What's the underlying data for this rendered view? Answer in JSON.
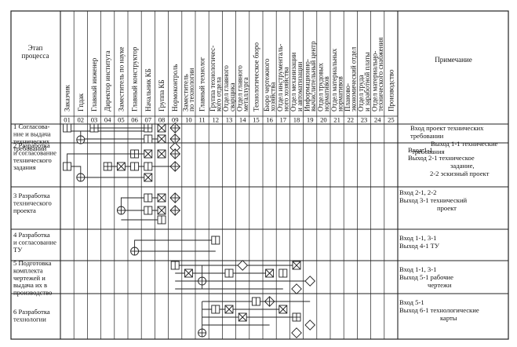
{
  "header": {
    "stage": [
      "Этап",
      "процесса"
    ],
    "note": "Примечание"
  },
  "columns": [
    {
      "no": "01",
      "label": [
        "Заказчик"
      ]
    },
    {
      "no": "02",
      "label": [
        "Гпдак"
      ]
    },
    {
      "no": "03",
      "label": [
        "Главный инженер"
      ]
    },
    {
      "no": "04",
      "label": [
        "Директор института"
      ]
    },
    {
      "no": "05",
      "label": [
        "Заместитель по науке"
      ]
    },
    {
      "no": "06",
      "label": [
        "Главный конструктор"
      ]
    },
    {
      "no": "07",
      "label": [
        "Начальник КБ"
      ]
    },
    {
      "no": "08",
      "label": [
        "Группа КБ"
      ]
    },
    {
      "no": "09",
      "label": [
        "Нормоконтроль"
      ]
    },
    {
      "no": "10",
      "label": [
        "Заместитель",
        "по технологии"
      ]
    },
    {
      "no": "11",
      "label": [
        "Главный технолог"
      ]
    },
    {
      "no": "12",
      "label": [
        "Группа технологичес-",
        "кого отдела"
      ]
    },
    {
      "no": "13",
      "label": [
        "Отдел главного",
        "сварщика"
      ]
    },
    {
      "no": "14",
      "label": [
        "Отдел главного",
        "металлурга"
      ]
    },
    {
      "no": "15",
      "label": [
        "Технологическое бюро"
      ]
    },
    {
      "no": "16",
      "label": [
        "Бюро чертежного",
        "хозяйства"
      ]
    },
    {
      "no": "17",
      "label": [
        "Отдел инструменталь-",
        "ного хозяйства"
      ]
    },
    {
      "no": "18",
      "label": [
        "Отдел механизации",
        "и автоматизации"
      ]
    },
    {
      "no": "19",
      "label": [
        "Информационно-",
        "вычислительный центр"
      ]
    },
    {
      "no": "20",
      "label": [
        "Отдел трудовых",
        "нормативов"
      ]
    },
    {
      "no": "21",
      "label": [
        "Отдел материальных",
        "нормативов"
      ]
    },
    {
      "no": "22",
      "label": [
        "Планово-",
        "экономический отдел"
      ]
    },
    {
      "no": "23",
      "label": [
        "Отдел труда",
        "и заработной платы"
      ]
    },
    {
      "no": "24",
      "label": [
        "Отдел материально-",
        "технического снабжения"
      ]
    },
    {
      "no": "25",
      "label": [
        "Производство"
      ]
    }
  ],
  "rows": [
    {
      "stage": [
        "1 Согласова-",
        "ние и выдача",
        "технических",
        "требований"
      ],
      "note": [
        "Вход проект технических",
        "требовании",
        "Выход 1-1 технические",
        "требования"
      ]
    },
    {
      "stage": [
        "2 Разработка",
        "и согласование",
        "технического",
        "задания"
      ],
      "note": [
        "Вход 1-1",
        "Выход 2-1 техническое",
        "задание,",
        "2-2 эскизный проект"
      ]
    },
    {
      "stage": [
        "3 Разработка",
        "технического",
        "проекта"
      ],
      "note": [
        "Вход 2-1, 2-2",
        "Выход 3-1 технический",
        "проект"
      ]
    },
    {
      "stage": [
        "4 Разработка",
        "и согласование",
        "ТУ"
      ],
      "note": [
        "Вход 1-1, 3-1",
        "Выход 4-1 ТУ"
      ]
    },
    {
      "stage": [
        "5 Подготовка",
        "комплекта",
        "чертежей и",
        "выдача их в",
        "производство"
      ],
      "note": [
        "Вход 1-1, 3-1",
        "Выход 5-1 рабочие",
        "чертежи"
      ]
    },
    {
      "stage": [
        "6 Разработка",
        "технологии"
      ],
      "note": [
        "Вход 5-1",
        "Выход 6-1 технологические",
        "карты"
      ]
    }
  ],
  "symbols": {
    "square": "square-mark",
    "square_plus": "square-plus-mark",
    "square_x": "square-x-mark",
    "circle_plus": "circle-plus-mark",
    "diamond": "diamond-mark",
    "diamond_plus": "diamond-plus-mark"
  }
}
